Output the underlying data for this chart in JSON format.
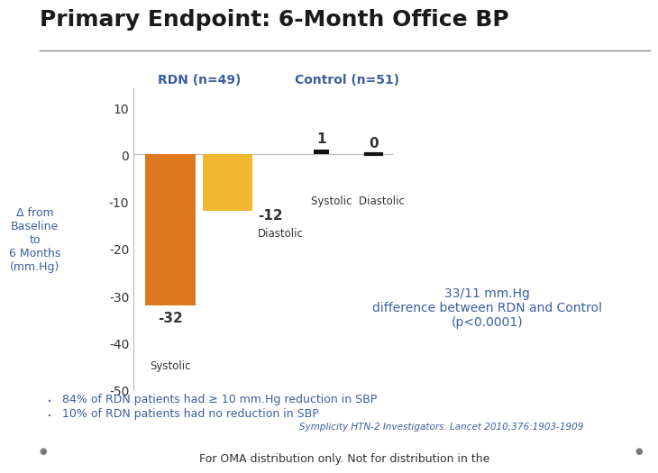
{
  "title": "Primary Endpoint: 6-Month Office BP",
  "title_color": "#1a1a1a",
  "title_fontsize": 18,
  "rdn_label": "RDN (n=49)",
  "control_label": "Control (n=51)",
  "rdn_systolic": -32,
  "rdn_diastolic": -12,
  "ctrl_systolic": 1,
  "ctrl_diastolic": 0,
  "bar_color_systolic": "#e07820",
  "bar_color_diastolic": "#f0b830",
  "ctrl_bar_color": "#111111",
  "ylim_min": -50,
  "ylim_max": 14,
  "yticks": [
    10,
    0,
    -10,
    -20,
    -30,
    -40,
    -50
  ],
  "ylabel": "Δ from\nBaseline\nto\n6 Months\n(mm.Hg)",
  "ylabel_color": "#555555",
  "rdn_systolic_label": "-32",
  "rdn_diastolic_label": "-12",
  "ctrl_systolic_label": "1",
  "ctrl_diastolic_label": "0",
  "systolic_text": "Systolic",
  "diastolic_text": "Diastolic",
  "annotation_text": "33/11 mm.Hg\ndifference between RDN and Control\n(p<0.0001)",
  "bullet1": "84% of RDN patients had ≥ 10 mm.Hg reduction in SBP",
  "bullet2": "10% of RDN patients had no reduction in SBP",
  "citation": "Symplicity HTN-2 Investigators. Lancet 2010;376:1903-1909",
  "footer": "For OMA distribution only. Not for distribution in the",
  "bg_color": "#ffffff",
  "text_color_blue": "#3a5f9f",
  "text_color_dark": "#333333",
  "text_color_gray": "#666666"
}
